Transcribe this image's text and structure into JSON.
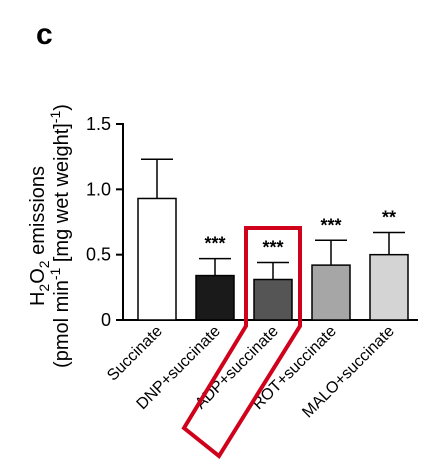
{
  "panel_label": "c",
  "chart_data": {
    "type": "bar",
    "categories": [
      "Succinate",
      "DNP+succinate",
      "ADP+succinate",
      "ROT+succinate",
      "MALO+succinate"
    ],
    "values": [
      0.93,
      0.34,
      0.31,
      0.42,
      0.5
    ],
    "errors": [
      0.3,
      0.13,
      0.13,
      0.19,
      0.17
    ],
    "significance": [
      "",
      "***",
      "***",
      "***",
      "**"
    ],
    "bar_colors": [
      "#ffffff",
      "#1a1a1a",
      "#555555",
      "#a6a6a6",
      "#d4d4d4"
    ],
    "ylabel_line1": "H2O2 emissions",
    "ylabel_line2": "(pmol min-1 [mg wet weight]-1)",
    "ylim": [
      0,
      1.5
    ],
    "yticks": [
      "0",
      "0.5",
      "1.0",
      "1.5"
    ],
    "highlight_color": "#d0021b",
    "highlighted_category": "ADP+succinate"
  }
}
